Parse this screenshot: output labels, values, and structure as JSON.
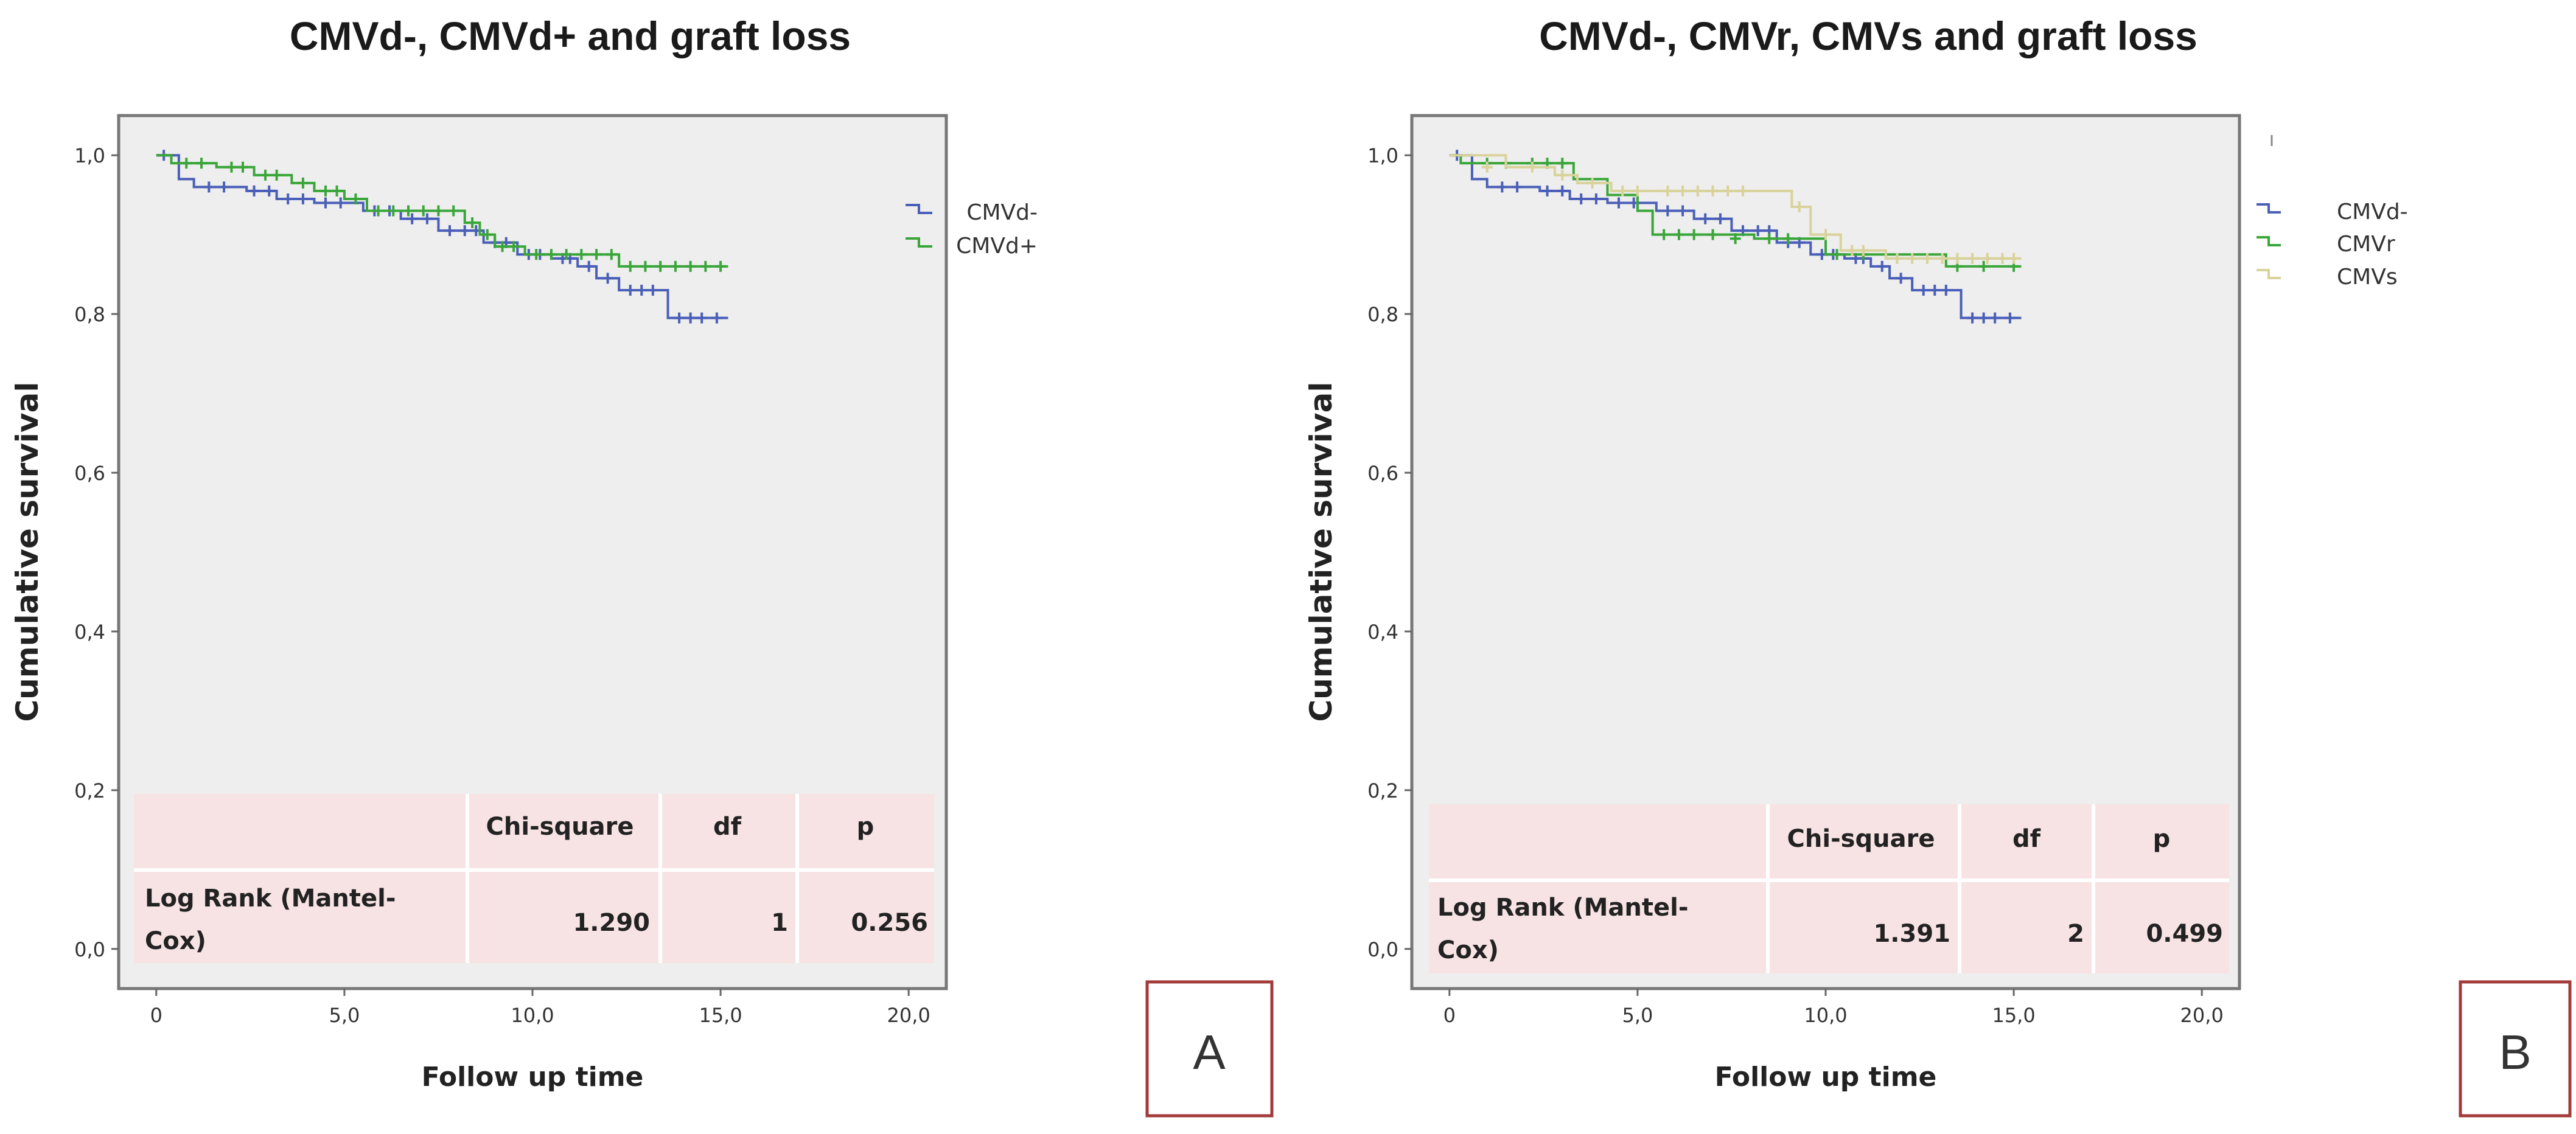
{
  "chart_data": [
    {
      "type": "line",
      "id": "A",
      "title": "CMVd-, CMVd+ and graft loss",
      "xlabel": "Follow up time",
      "ylabel": "Cumulative survival",
      "xlim": [
        -1,
        21
      ],
      "ylim": [
        -0.05,
        1.05
      ],
      "xticks": [
        0,
        5,
        10,
        15,
        20
      ],
      "xtick_labels": [
        "0",
        "5,0",
        "10,0",
        "15,0",
        "20,0"
      ],
      "yticks": [
        0,
        0.2,
        0.4,
        0.6,
        0.8,
        1.0
      ],
      "ytick_labels": [
        "0,0",
        "0,2",
        "0,4",
        "0,6",
        "0,8",
        "1,0"
      ],
      "legend_position": "right",
      "panel_label": "A",
      "series": [
        {
          "name": "CMVd-",
          "color": "#4a5fb8",
          "steps": [
            [
              0,
              1.0
            ],
            [
              0.6,
              0.97
            ],
            [
              1.0,
              0.96
            ],
            [
              2.4,
              0.955
            ],
            [
              3.2,
              0.945
            ],
            [
              4.2,
              0.94
            ],
            [
              5.5,
              0.93
            ],
            [
              6.5,
              0.92
            ],
            [
              7.5,
              0.905
            ],
            [
              8.7,
              0.89
            ],
            [
              9.6,
              0.875
            ],
            [
              10.5,
              0.87
            ],
            [
              11.2,
              0.86
            ],
            [
              11.7,
              0.845
            ],
            [
              12.3,
              0.83
            ],
            [
              13.6,
              0.795
            ],
            [
              15.2,
              0.795
            ]
          ],
          "censor": [
            [
              0.2,
              1.0
            ],
            [
              1.4,
              0.96
            ],
            [
              1.8,
              0.96
            ],
            [
              2.6,
              0.955
            ],
            [
              3.0,
              0.955
            ],
            [
              3.5,
              0.945
            ],
            [
              3.9,
              0.945
            ],
            [
              4.5,
              0.94
            ],
            [
              4.9,
              0.94
            ],
            [
              5.8,
              0.93
            ],
            [
              6.2,
              0.93
            ],
            [
              6.8,
              0.92
            ],
            [
              7.2,
              0.92
            ],
            [
              7.8,
              0.905
            ],
            [
              8.2,
              0.905
            ],
            [
              8.5,
              0.905
            ],
            [
              9.0,
              0.89
            ],
            [
              9.3,
              0.89
            ],
            [
              9.9,
              0.875
            ],
            [
              10.2,
              0.875
            ],
            [
              10.8,
              0.87
            ],
            [
              11.0,
              0.87
            ],
            [
              11.5,
              0.86
            ],
            [
              12.0,
              0.845
            ],
            [
              12.6,
              0.83
            ],
            [
              12.9,
              0.83
            ],
            [
              13.2,
              0.83
            ],
            [
              13.9,
              0.795
            ],
            [
              14.2,
              0.795
            ],
            [
              14.5,
              0.795
            ],
            [
              14.9,
              0.795
            ]
          ]
        },
        {
          "name": "CMVd+",
          "color": "#3aa63a",
          "steps": [
            [
              0,
              1.0
            ],
            [
              0.4,
              0.99
            ],
            [
              1.6,
              0.985
            ],
            [
              2.6,
              0.975
            ],
            [
              3.6,
              0.965
            ],
            [
              4.2,
              0.955
            ],
            [
              5.0,
              0.945
            ],
            [
              5.6,
              0.93
            ],
            [
              8.2,
              0.915
            ],
            [
              8.6,
              0.9
            ],
            [
              9.0,
              0.885
            ],
            [
              9.8,
              0.875
            ],
            [
              12.3,
              0.86
            ],
            [
              15.2,
              0.86
            ]
          ],
          "censor": [
            [
              0.8,
              0.99
            ],
            [
              1.2,
              0.99
            ],
            [
              2.0,
              0.985
            ],
            [
              2.3,
              0.985
            ],
            [
              2.9,
              0.975
            ],
            [
              3.2,
              0.975
            ],
            [
              3.9,
              0.965
            ],
            [
              4.5,
              0.955
            ],
            [
              4.8,
              0.955
            ],
            [
              5.3,
              0.945
            ],
            [
              5.9,
              0.93
            ],
            [
              6.3,
              0.93
            ],
            [
              6.7,
              0.93
            ],
            [
              7.1,
              0.93
            ],
            [
              7.5,
              0.93
            ],
            [
              7.9,
              0.93
            ],
            [
              8.4,
              0.915
            ],
            [
              8.8,
              0.9
            ],
            [
              9.2,
              0.885
            ],
            [
              9.5,
              0.885
            ],
            [
              10.1,
              0.875
            ],
            [
              10.5,
              0.875
            ],
            [
              10.9,
              0.875
            ],
            [
              11.3,
              0.875
            ],
            [
              11.7,
              0.875
            ],
            [
              12.1,
              0.875
            ],
            [
              12.6,
              0.86
            ],
            [
              13.0,
              0.86
            ],
            [
              13.4,
              0.86
            ],
            [
              13.8,
              0.86
            ],
            [
              14.2,
              0.86
            ],
            [
              14.6,
              0.86
            ],
            [
              15.0,
              0.86
            ]
          ]
        }
      ],
      "stats_table": {
        "headers": [
          "",
          "Chi-square",
          "df",
          "p"
        ],
        "row_label_line1": "Log Rank (Mantel-",
        "row_label_line2": "Cox)",
        "chi_square": "1.290",
        "df": "1",
        "p": "0.256"
      }
    },
    {
      "type": "line",
      "id": "B",
      "title": "CMVd-, CMVr, CMVs and graft loss",
      "xlabel": "Follow up time",
      "ylabel": "Cumulative survival",
      "xlim": [
        -1,
        21
      ],
      "ylim": [
        -0.05,
        1.05
      ],
      "xticks": [
        0,
        5,
        10,
        15,
        20
      ],
      "xtick_labels": [
        "0",
        "5,0",
        "10,0",
        "15,0",
        "20,0"
      ],
      "yticks": [
        0,
        0.2,
        0.4,
        0.6,
        0.8,
        1.0
      ],
      "ytick_labels": [
        "0,0",
        "0,2",
        "0,4",
        "0,6",
        "0,8",
        "1,0"
      ],
      "legend_position": "right",
      "panel_label": "B",
      "series": [
        {
          "name": "CMVd-",
          "color": "#4a5fb8",
          "steps": [
            [
              0,
              1.0
            ],
            [
              0.6,
              0.97
            ],
            [
              1.0,
              0.96
            ],
            [
              2.4,
              0.955
            ],
            [
              3.2,
              0.945
            ],
            [
              4.2,
              0.94
            ],
            [
              5.5,
              0.93
            ],
            [
              6.5,
              0.92
            ],
            [
              7.5,
              0.905
            ],
            [
              8.7,
              0.89
            ],
            [
              9.6,
              0.875
            ],
            [
              10.5,
              0.87
            ],
            [
              11.2,
              0.86
            ],
            [
              11.7,
              0.845
            ],
            [
              12.3,
              0.83
            ],
            [
              13.6,
              0.795
            ],
            [
              15.2,
              0.795
            ]
          ],
          "censor": [
            [
              0.2,
              1.0
            ],
            [
              1.4,
              0.96
            ],
            [
              1.8,
              0.96
            ],
            [
              2.6,
              0.955
            ],
            [
              3.0,
              0.955
            ],
            [
              3.5,
              0.945
            ],
            [
              3.9,
              0.945
            ],
            [
              4.5,
              0.94
            ],
            [
              4.9,
              0.94
            ],
            [
              5.8,
              0.93
            ],
            [
              6.2,
              0.93
            ],
            [
              6.8,
              0.92
            ],
            [
              7.2,
              0.92
            ],
            [
              7.8,
              0.905
            ],
            [
              8.2,
              0.905
            ],
            [
              8.5,
              0.905
            ],
            [
              9.0,
              0.89
            ],
            [
              9.3,
              0.89
            ],
            [
              9.9,
              0.875
            ],
            [
              10.2,
              0.875
            ],
            [
              10.8,
              0.87
            ],
            [
              11.0,
              0.87
            ],
            [
              11.5,
              0.86
            ],
            [
              12.0,
              0.845
            ],
            [
              12.6,
              0.83
            ],
            [
              12.9,
              0.83
            ],
            [
              13.2,
              0.83
            ],
            [
              13.9,
              0.795
            ],
            [
              14.2,
              0.795
            ],
            [
              14.5,
              0.795
            ],
            [
              14.9,
              0.795
            ]
          ]
        },
        {
          "name": "CMVr",
          "color": "#3aa63a",
          "steps": [
            [
              0,
              1.0
            ],
            [
              0.3,
              0.99
            ],
            [
              3.3,
              0.97
            ],
            [
              4.2,
              0.95
            ],
            [
              5.0,
              0.93
            ],
            [
              5.4,
              0.9
            ],
            [
              8.1,
              0.895
            ],
            [
              8.3,
              0.895
            ],
            [
              10.0,
              0.875
            ],
            [
              11.5,
              0.875
            ],
            [
              13.2,
              0.86
            ],
            [
              15.2,
              0.86
            ]
          ],
          "censor": [
            [
              1.0,
              0.99
            ],
            [
              1.5,
              0.99
            ],
            [
              2.2,
              0.99
            ],
            [
              2.6,
              0.99
            ],
            [
              3.0,
              0.99
            ],
            [
              5.7,
              0.9
            ],
            [
              6.1,
              0.9
            ],
            [
              6.5,
              0.9
            ],
            [
              7.0,
              0.9
            ],
            [
              7.6,
              0.895
            ],
            [
              8.5,
              0.895
            ],
            [
              9.0,
              0.895
            ],
            [
              10.3,
              0.875
            ],
            [
              11.0,
              0.875
            ],
            [
              13.5,
              0.86
            ],
            [
              14.2,
              0.86
            ],
            [
              15.0,
              0.86
            ]
          ]
        },
        {
          "name": "CMVs",
          "color": "#d9d29a",
          "steps": [
            [
              0,
              1.0
            ],
            [
              1.5,
              0.985
            ],
            [
              2.8,
              0.975
            ],
            [
              3.4,
              0.965
            ],
            [
              4.3,
              0.955
            ],
            [
              5.6,
              0.955
            ],
            [
              8.2,
              0.955
            ],
            [
              9.1,
              0.935
            ],
            [
              9.6,
              0.9
            ],
            [
              10.4,
              0.88
            ],
            [
              11.6,
              0.87
            ],
            [
              15.2,
              0.87
            ]
          ],
          "censor": [
            [
              1.0,
              0.985
            ],
            [
              2.2,
              0.985
            ],
            [
              3.0,
              0.975
            ],
            [
              3.8,
              0.965
            ],
            [
              4.6,
              0.955
            ],
            [
              5.0,
              0.955
            ],
            [
              5.8,
              0.955
            ],
            [
              6.2,
              0.955
            ],
            [
              6.6,
              0.955
            ],
            [
              7.0,
              0.955
            ],
            [
              7.4,
              0.955
            ],
            [
              7.8,
              0.955
            ],
            [
              9.3,
              0.935
            ],
            [
              10.0,
              0.9
            ],
            [
              10.7,
              0.88
            ],
            [
              11.0,
              0.88
            ],
            [
              11.9,
              0.87
            ],
            [
              12.3,
              0.87
            ],
            [
              12.7,
              0.87
            ],
            [
              13.1,
              0.87
            ],
            [
              13.5,
              0.87
            ],
            [
              13.9,
              0.87
            ],
            [
              14.3,
              0.87
            ],
            [
              14.7,
              0.87
            ],
            [
              15.0,
              0.87
            ]
          ]
        }
      ],
      "stats_table": {
        "headers": [
          "",
          "Chi-square",
          "df",
          "p"
        ],
        "row_label_line1": "Log Rank (Mantel-",
        "row_label_line2": "Cox)",
        "chi_square": "1.391",
        "df": "2",
        "p": "0.499"
      }
    }
  ]
}
